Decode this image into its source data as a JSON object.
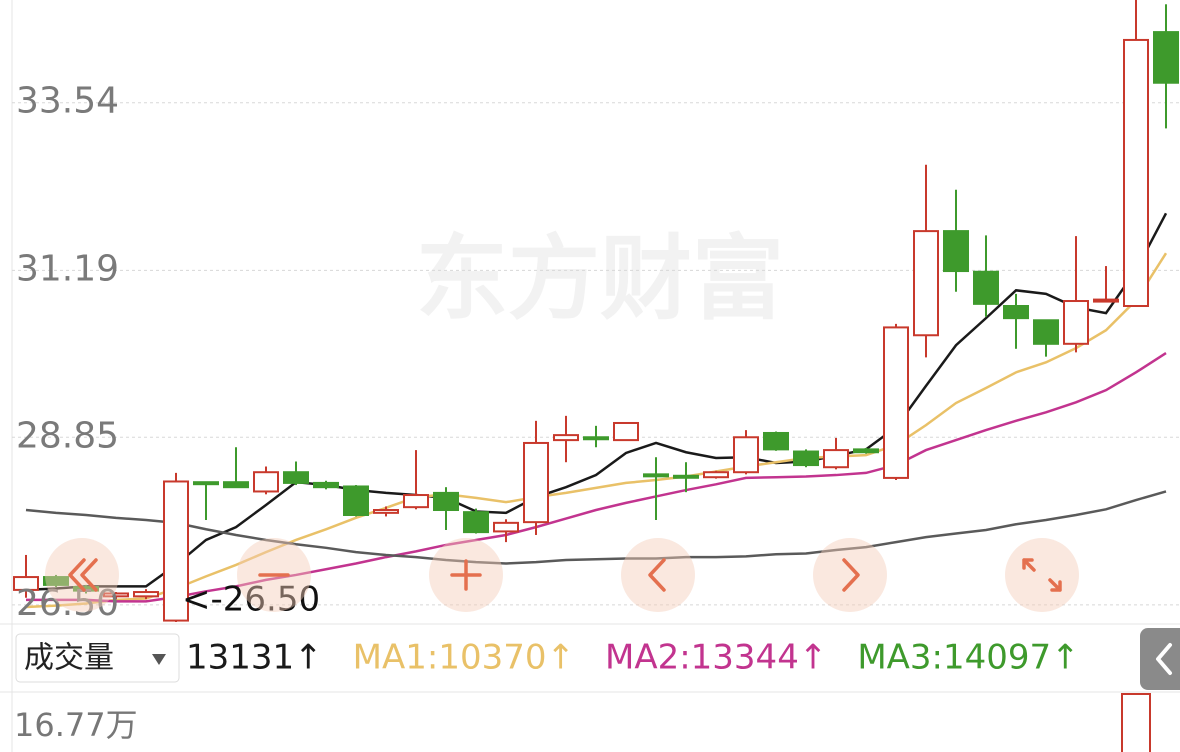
{
  "chart_data": {
    "type": "candlestick",
    "watermark": "东方财富",
    "ylim": [
      26.26,
      34.98
    ],
    "yticks": [
      33.54,
      31.19,
      28.85,
      {
        "value": 26.5,
        "label": "26.50"
      }
    ],
    "grid": true,
    "up_color": "#c8392c",
    "down_color": "#3e9a2c",
    "open": [
      26.71,
      26.89,
      26.75,
      26.62,
      26.62,
      26.28,
      28.22,
      28.22,
      28.09,
      28.36,
      28.21,
      28.16,
      27.79,
      27.87,
      28.07,
      27.8,
      27.53,
      27.66,
      28.81,
      28.85,
      28.81,
      28.33,
      28.31,
      28.29,
      28.36,
      28.91,
      28.65,
      28.43,
      28.68,
      28.28,
      30.28,
      31.74,
      31.17,
      30.69,
      30.49,
      30.16,
      30.76,
      30.69,
      34.53
    ],
    "high": [
      27.2,
      26.92,
      26.78,
      26.68,
      26.72,
      28.35,
      28.22,
      28.71,
      28.44,
      28.51,
      28.24,
      28.18,
      27.88,
      28.67,
      28.15,
      27.85,
      27.7,
      29.08,
      29.15,
      29.01,
      29.05,
      28.57,
      28.5,
      28.38,
      28.95,
      28.93,
      28.68,
      28.84,
      28.7,
      30.44,
      32.67,
      32.32,
      31.68,
      30.86,
      30.49,
      31.67,
      31.25,
      34.98,
      34.92
    ],
    "low": [
      26.6,
      26.75,
      26.66,
      26.58,
      26.58,
      26.26,
      27.69,
      28.15,
      28.05,
      28.18,
      28.12,
      27.74,
      27.74,
      27.84,
      27.55,
      27.5,
      27.38,
      27.48,
      28.5,
      28.71,
      28.81,
      27.69,
      28.08,
      28.27,
      28.33,
      28.66,
      28.43,
      28.4,
      28.62,
      28.25,
      29.97,
      30.89,
      30.54,
      30.09,
      29.98,
      30.04,
      30.76,
      30.69,
      33.18
    ],
    "close": [
      26.89,
      26.78,
      26.7,
      26.66,
      26.68,
      28.23,
      28.2,
      28.15,
      28.36,
      28.21,
      28.15,
      27.76,
      27.83,
      28.04,
      27.83,
      27.52,
      27.65,
      28.77,
      28.88,
      28.83,
      29.05,
      28.31,
      28.3,
      28.36,
      28.85,
      28.68,
      28.46,
      28.67,
      28.64,
      30.39,
      31.74,
      31.18,
      30.72,
      30.52,
      30.16,
      30.76,
      30.78,
      34.42,
      33.82
    ],
    "series": [
      {
        "color": "#1a1a1a",
        "values": [
          26.71,
          26.73,
          26.76,
          26.76,
          26.76,
          27.06,
          27.41,
          27.59,
          27.9,
          28.22,
          28.18,
          28.11,
          28.07,
          28.04,
          28.0,
          27.81,
          27.79,
          28.01,
          28.15,
          28.32,
          28.63,
          28.77,
          28.64,
          28.56,
          28.57,
          28.49,
          28.51,
          28.59,
          28.68,
          28.99,
          29.57,
          30.14,
          30.52,
          30.91,
          30.86,
          30.67,
          30.59,
          31.19,
          31.99
        ]
      },
      {
        "color": "#e9c168",
        "values": [
          26.47,
          26.49,
          26.52,
          26.57,
          26.59,
          26.73,
          26.9,
          27.06,
          27.24,
          27.41,
          27.56,
          27.72,
          27.86,
          28.01,
          28.05,
          28.0,
          27.94,
          28.01,
          28.07,
          28.14,
          28.21,
          28.25,
          28.3,
          28.37,
          28.44,
          28.5,
          28.56,
          28.58,
          28.6,
          28.74,
          29.02,
          29.33,
          29.54,
          29.76,
          29.9,
          30.1,
          30.35,
          30.77,
          31.43
        ]
      },
      {
        "color": "#c2348f",
        "values": [
          26.57,
          26.57,
          26.57,
          26.55,
          26.55,
          26.61,
          26.69,
          26.76,
          26.85,
          26.92,
          27.0,
          27.08,
          27.17,
          27.25,
          27.34,
          27.41,
          27.48,
          27.59,
          27.71,
          27.83,
          27.93,
          28.02,
          28.11,
          28.19,
          28.28,
          28.29,
          28.3,
          28.32,
          28.35,
          28.46,
          28.67,
          28.81,
          28.95,
          29.08,
          29.2,
          29.34,
          29.51,
          29.76,
          30.03
        ]
      },
      {
        "color": "#5a5a5a",
        "values": [
          27.83,
          27.79,
          27.76,
          27.72,
          27.69,
          27.65,
          27.56,
          27.48,
          27.41,
          27.35,
          27.3,
          27.24,
          27.2,
          27.17,
          27.13,
          27.1,
          27.08,
          27.1,
          27.13,
          27.14,
          27.15,
          27.15,
          27.17,
          27.17,
          27.18,
          27.21,
          27.22,
          27.27,
          27.31,
          27.38,
          27.45,
          27.5,
          27.55,
          27.63,
          27.69,
          27.76,
          27.84,
          27.97,
          28.09
        ]
      }
    ],
    "annotation": "<-26.50"
  },
  "volume_panel": {
    "selector": "成交量",
    "legend": [
      {
        "text": "13131↑",
        "color": "#1a1a1a"
      },
      {
        "text": "MA1:10370↑",
        "color": "#e9c168"
      },
      {
        "text": "MA2:13344↑",
        "color": "#c2348f"
      },
      {
        "text": "MA3:14097↑",
        "color": "#3e9a2c"
      }
    ],
    "axis_label": "16.77万"
  }
}
